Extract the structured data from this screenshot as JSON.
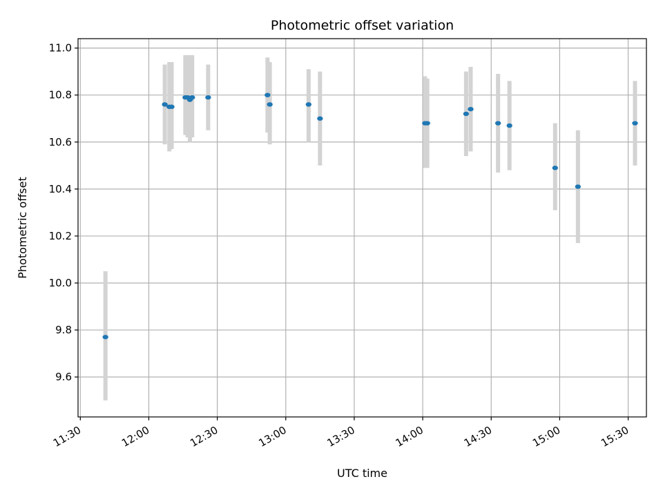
{
  "chart_data": {
    "type": "scatter",
    "title": "Photometric offset variation",
    "xlabel": "UTC time",
    "ylabel": "Photometric offset",
    "x_axis_type": "time",
    "xlim": [
      "11:29",
      "15:38"
    ],
    "ylim": [
      9.43,
      11.04
    ],
    "x_ticks": [
      "11:30",
      "12:00",
      "12:30",
      "13:00",
      "13:30",
      "14:00",
      "14:30",
      "15:00",
      "15:30"
    ],
    "y_ticks": [
      9.6,
      9.8,
      10.0,
      10.2,
      10.4,
      10.6,
      10.8,
      11.0
    ],
    "grid": true,
    "colors": {
      "point": "#1f77b4",
      "errorbar": "#d3d3d3",
      "grid": "#b0b0b0"
    },
    "points": [
      {
        "x": "11:41",
        "y": 9.77,
        "y_low": 9.5,
        "y_high": 10.05
      },
      {
        "x": "12:07",
        "y": 10.76,
        "y_low": 10.59,
        "y_high": 10.93
      },
      {
        "x": "12:09",
        "y": 10.75,
        "y_low": 10.56,
        "y_high": 10.94
      },
      {
        "x": "12:10",
        "y": 10.75,
        "y_low": 10.57,
        "y_high": 10.94
      },
      {
        "x": "12:16",
        "y": 10.79,
        "y_low": 10.63,
        "y_high": 10.97
      },
      {
        "x": "12:17",
        "y": 10.79,
        "y_low": 10.62,
        "y_high": 10.97
      },
      {
        "x": "12:18",
        "y": 10.78,
        "y_low": 10.6,
        "y_high": 10.97
      },
      {
        "x": "12:19",
        "y": 10.79,
        "y_low": 10.62,
        "y_high": 10.97
      },
      {
        "x": "12:26",
        "y": 10.79,
        "y_low": 10.65,
        "y_high": 10.93
      },
      {
        "x": "12:52",
        "y": 10.8,
        "y_low": 10.64,
        "y_high": 10.96
      },
      {
        "x": "12:53",
        "y": 10.76,
        "y_low": 10.59,
        "y_high": 10.94
      },
      {
        "x": "13:10",
        "y": 10.76,
        "y_low": 10.6,
        "y_high": 10.91
      },
      {
        "x": "13:15",
        "y": 10.7,
        "y_low": 10.5,
        "y_high": 10.9
      },
      {
        "x": "14:01",
        "y": 10.68,
        "y_low": 10.49,
        "y_high": 10.88
      },
      {
        "x": "14:02",
        "y": 10.68,
        "y_low": 10.49,
        "y_high": 10.87
      },
      {
        "x": "14:19",
        "y": 10.72,
        "y_low": 10.54,
        "y_high": 10.9
      },
      {
        "x": "14:21",
        "y": 10.74,
        "y_low": 10.56,
        "y_high": 10.92
      },
      {
        "x": "14:33",
        "y": 10.68,
        "y_low": 10.47,
        "y_high": 10.89
      },
      {
        "x": "14:38",
        "y": 10.67,
        "y_low": 10.48,
        "y_high": 10.86
      },
      {
        "x": "14:58",
        "y": 10.49,
        "y_low": 10.31,
        "y_high": 10.68
      },
      {
        "x": "15:08",
        "y": 10.41,
        "y_low": 10.17,
        "y_high": 10.65
      },
      {
        "x": "15:33",
        "y": 10.68,
        "y_low": 10.5,
        "y_high": 10.86
      }
    ]
  }
}
